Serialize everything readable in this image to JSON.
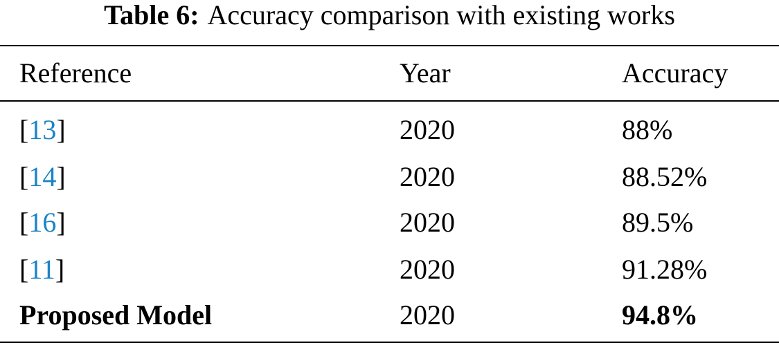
{
  "caption": {
    "label": "Table 6:",
    "text": "Accuracy comparison with existing works"
  },
  "table": {
    "header": [
      "Reference",
      "Year",
      "Accuracy"
    ],
    "rows": [
      [
        [
          "[",
          "13",
          "]"
        ],
        "2020",
        "88%"
      ],
      [
        [
          "[",
          "14",
          "]"
        ],
        "2020",
        "88.52%"
      ],
      [
        [
          "[",
          "16",
          "]"
        ],
        "2020",
        "89.5%"
      ],
      [
        [
          "[",
          "11",
          "]"
        ],
        "2020",
        "91.28%"
      ],
      [
        [
          "Proposed Model"
        ],
        "2020",
        "94.8%"
      ]
    ]
  }
}
